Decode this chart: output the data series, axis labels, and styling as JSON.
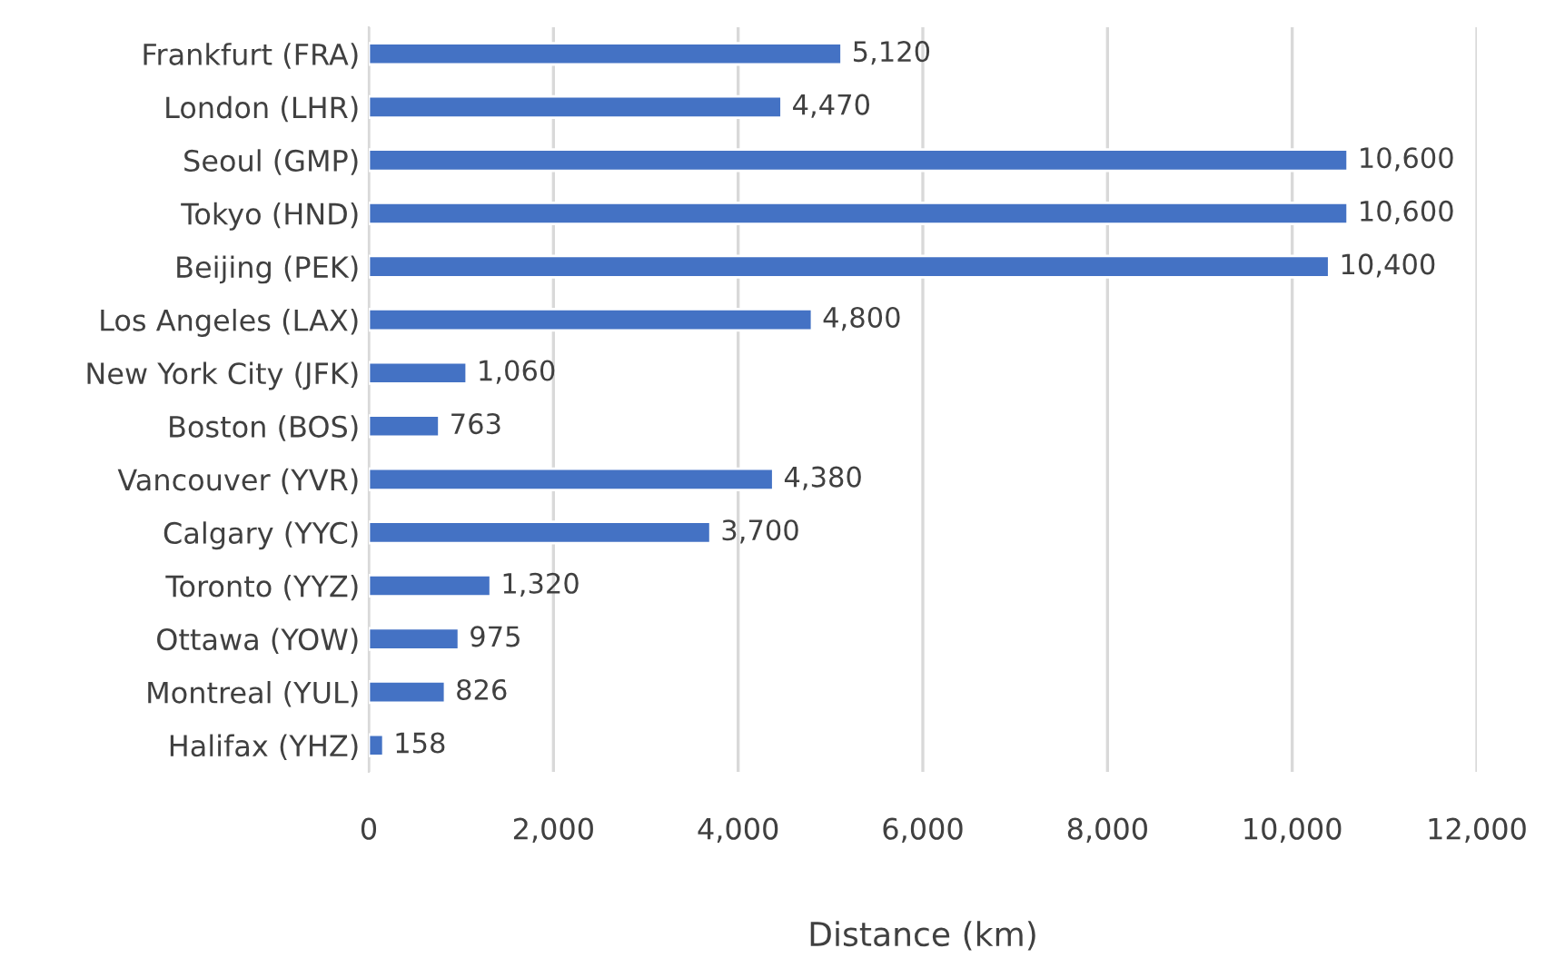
{
  "chart_data": {
    "type": "bar",
    "orientation": "horizontal",
    "xlabel": "Distance (km)",
    "categories": [
      "Frankfurt (FRA)",
      "London (LHR)",
      "Seoul (GMP)",
      "Tokyo (HND)",
      "Beijing (PEK)",
      "Los Angeles (LAX)",
      "New York City (JFK)",
      "Boston (BOS)",
      "Vancouver (YVR)",
      "Calgary (YYC)",
      "Toronto (YYZ)",
      "Ottawa (YOW)",
      "Montreal (YUL)",
      "Halifax (YHZ)"
    ],
    "values": [
      5120,
      4470,
      10600,
      10600,
      10400,
      4800,
      1060,
      763,
      4380,
      3700,
      1320,
      975,
      826,
      158
    ],
    "value_labels": [
      "5,120",
      "4,470",
      "10,600",
      "10,600",
      "10,400",
      "4,800",
      "1,060",
      "763",
      "4,380",
      "3,700",
      "1,320",
      "975",
      "826",
      "158"
    ],
    "color": "#4472c4",
    "xlim": [
      0,
      12000
    ],
    "xticks": [
      {
        "value": 0,
        "label": "0"
      },
      {
        "value": 2000,
        "label": "2,000"
      },
      {
        "value": 4000,
        "label": "4,000"
      },
      {
        "value": 6000,
        "label": "6,000"
      },
      {
        "value": 8000,
        "label": "8,000"
      },
      {
        "value": 10000,
        "label": "10,000"
      },
      {
        "value": 12000,
        "label": "12,000"
      }
    ],
    "grid": "x",
    "legend": false
  }
}
